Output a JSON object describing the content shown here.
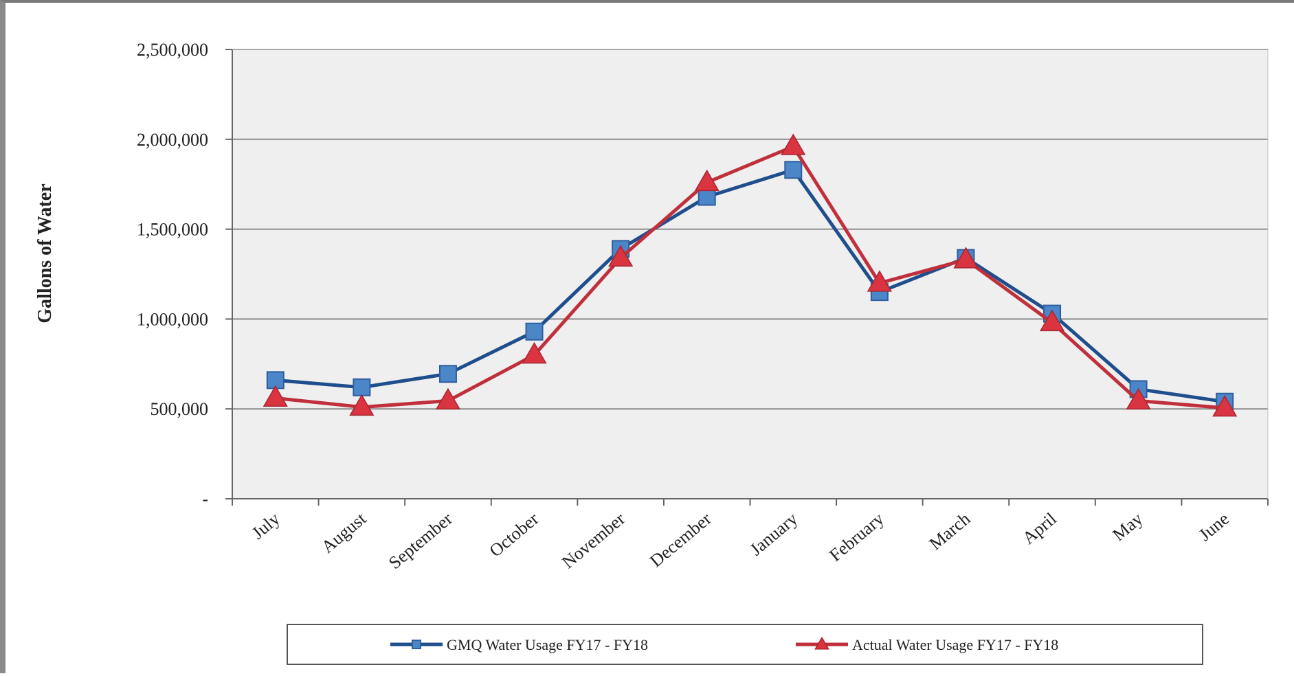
{
  "chart_data": {
    "type": "line",
    "title": "",
    "xlabel": "",
    "ylabel": "Gallons of Water",
    "ylim": [
      0,
      2500000
    ],
    "y_ticks": [
      0,
      500000,
      1000000,
      1500000,
      2000000,
      2500000
    ],
    "y_tick_labels": [
      "-",
      "500,000",
      "1,000,000",
      "1,500,000",
      "2,000,000",
      "2,500,000"
    ],
    "grid": true,
    "legend_position": "bottom",
    "categories": [
      "July",
      "August",
      "September",
      "October",
      "November",
      "December",
      "January",
      "February",
      "March",
      "April",
      "May",
      "June"
    ],
    "series": [
      {
        "name": "GMQ Water Usage FY17 - FY18",
        "color": "#1f4e8c",
        "marker_color": "#4a86c8",
        "marker": "square",
        "values": [
          660000,
          620000,
          695000,
          930000,
          1390000,
          1680000,
          1830000,
          1150000,
          1340000,
          1030000,
          610000,
          540000
        ]
      },
      {
        "name": "Actual Water Usage FY17 - FY18",
        "color": "#c0303c",
        "marker_color": "#d9343f",
        "marker": "triangle",
        "values": [
          560000,
          510000,
          545000,
          800000,
          1340000,
          1760000,
          1960000,
          1200000,
          1330000,
          980000,
          545000,
          505000
        ]
      }
    ]
  }
}
